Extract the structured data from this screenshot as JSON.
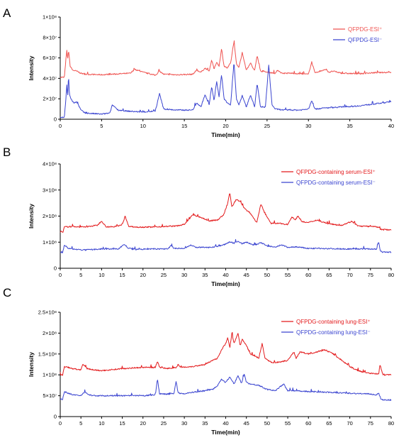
{
  "chart_data": [
    {
      "panel": "A",
      "type": "line",
      "xlabel": "Time(min)",
      "ylabel": "Intensity",
      "xlim": [
        0,
        40
      ],
      "ylim": [
        0,
        100000000
      ],
      "xticks": [
        0,
        5,
        10,
        15,
        20,
        25,
        30,
        35,
        40
      ],
      "yticks": [
        0,
        20000000,
        40000000,
        60000000,
        80000000,
        100000000
      ],
      "ytick_labels": [
        "0",
        "2×10⁷",
        "4×10⁷",
        "6×10⁷",
        "8×10⁷",
        "1×10⁸"
      ],
      "legend_position": "top-right",
      "series": [
        {
          "name": "QFPDG-ESI⁺",
          "color": "#ef5350",
          "base": 43000000,
          "x": [
            0.0,
            0.5,
            0.7,
            0.8,
            0.9,
            1.0,
            1.1,
            1.2,
            1.5,
            2.0,
            2.5,
            3.0,
            5.0,
            8.5,
            9.0,
            9.3,
            10.0,
            11.5,
            12.0,
            12.5,
            14.0,
            16.0,
            16.5,
            17.0,
            17.5,
            18.0,
            18.3,
            18.6,
            18.9,
            19.2,
            19.5,
            19.8,
            20.2,
            20.6,
            21.0,
            21.3,
            21.6,
            22.0,
            22.5,
            23.0,
            23.5,
            23.8,
            24.2,
            25.0,
            26.0,
            26.3,
            26.8,
            28.0,
            30.0,
            30.4,
            30.8,
            31.5,
            32.0,
            32.5,
            33.0,
            34.0,
            36.0,
            38.0,
            40.0
          ],
          "y": [
            41000000,
            41000000,
            60000000,
            67000000,
            58000000,
            68000000,
            60000000,
            52000000,
            48000000,
            47000000,
            45000000,
            44000000,
            43500000,
            45000000,
            49000000,
            48000000,
            46000000,
            43000000,
            47000000,
            44000000,
            43500000,
            44000000,
            48000000,
            46000000,
            50000000,
            47000000,
            58000000,
            49000000,
            56000000,
            52000000,
            69000000,
            52000000,
            50000000,
            55000000,
            76000000,
            54000000,
            51000000,
            65000000,
            48000000,
            55000000,
            47000000,
            63000000,
            47000000,
            46000000,
            45000000,
            48000000,
            45000000,
            45000000,
            44000000,
            56000000,
            45000000,
            47000000,
            49000000,
            46000000,
            47000000,
            45000000,
            44500000,
            45500000,
            46000000
          ]
        },
        {
          "name": "QFPDG-ESI⁻",
          "color": "#3b45d0",
          "base": 8000000,
          "x": [
            0.0,
            0.5,
            0.7,
            0.8,
            0.9,
            1.0,
            1.1,
            1.3,
            1.6,
            2.0,
            2.5,
            3.0,
            5.0,
            6.0,
            6.3,
            6.6,
            7.0,
            8.0,
            10.0,
            11.5,
            12.0,
            12.5,
            14.0,
            16.0,
            16.5,
            17.0,
            17.5,
            18.0,
            18.3,
            18.6,
            18.9,
            19.2,
            19.5,
            19.8,
            20.2,
            20.6,
            21.0,
            21.3,
            21.6,
            22.0,
            22.5,
            23.0,
            23.5,
            23.8,
            24.2,
            24.8,
            25.2,
            25.6,
            26.0,
            27.0,
            29.0,
            30.0,
            30.4,
            30.8,
            32.0,
            34.0,
            36.0,
            38.0,
            40.0
          ],
          "y": [
            2000000,
            2000000,
            22000000,
            34000000,
            20000000,
            44000000,
            25000000,
            20000000,
            16000000,
            17000000,
            9000000,
            6000000,
            5000000,
            6000000,
            14000000,
            12000000,
            9000000,
            8000000,
            7000000,
            8000000,
            25000000,
            10000000,
            9000000,
            9000000,
            16000000,
            12000000,
            24000000,
            14000000,
            32000000,
            18000000,
            37000000,
            22000000,
            44000000,
            20000000,
            16000000,
            14000000,
            56000000,
            20000000,
            14000000,
            23000000,
            12000000,
            24000000,
            12000000,
            35000000,
            12000000,
            12000000,
            53000000,
            14000000,
            10000000,
            9000000,
            9000000,
            10000000,
            18000000,
            10000000,
            11000000,
            12000000,
            13000000,
            15000000,
            17000000
          ]
        }
      ]
    },
    {
      "panel": "B",
      "type": "line",
      "xlabel": "Time(min)",
      "ylabel": "Intensity",
      "xlim": [
        0,
        80
      ],
      "ylim": [
        0,
        400000000
      ],
      "xticks": [
        0,
        5,
        10,
        15,
        20,
        25,
        30,
        35,
        40,
        45,
        50,
        55,
        60,
        65,
        70,
        75,
        80
      ],
      "yticks": [
        0,
        100000000,
        200000000,
        300000000,
        400000000
      ],
      "ytick_labels": [
        "0",
        "1×10⁸",
        "2×10⁸",
        "3×10⁸",
        "4×10⁸"
      ],
      "legend_position": "top-right",
      "series": [
        {
          "name": "QFPDG-containing serum-ESI⁺",
          "color": "#e31a1c",
          "base": 158000000,
          "x": [
            0,
            0.7,
            1.0,
            3,
            6,
            9,
            10,
            11,
            13,
            15,
            15.7,
            16.5,
            18,
            22,
            25,
            28,
            30,
            31,
            32,
            34,
            36,
            38,
            39.5,
            40.5,
            41,
            41.5,
            42.5,
            43.5,
            44.5,
            46,
            47.5,
            48.5,
            49.5,
            51,
            53,
            55,
            56,
            56.7,
            57.5,
            58.5,
            60,
            62,
            65,
            68,
            70.5,
            72,
            75,
            77,
            77.3,
            78,
            80
          ],
          "y": [
            140000000,
            140000000,
            158000000,
            160000000,
            158000000,
            165000000,
            182000000,
            160000000,
            158000000,
            168000000,
            200000000,
            162000000,
            158000000,
            158000000,
            160000000,
            162000000,
            168000000,
            185000000,
            205000000,
            195000000,
            182000000,
            185000000,
            205000000,
            250000000,
            290000000,
            235000000,
            262000000,
            258000000,
            230000000,
            210000000,
            175000000,
            245000000,
            210000000,
            172000000,
            172000000,
            168000000,
            198000000,
            185000000,
            200000000,
            178000000,
            175000000,
            185000000,
            170000000,
            165000000,
            180000000,
            162000000,
            160000000,
            158000000,
            150000000,
            148000000,
            148000000
          ]
        },
        {
          "name": "QFPDG-containing serum-ESI⁻",
          "color": "#3b45d0",
          "base": 72000000,
          "x": [
            0,
            0.6,
            1.0,
            2,
            4,
            6,
            10,
            14,
            15.5,
            16.5,
            18,
            22,
            26,
            26.8,
            27.5,
            30,
            31.5,
            33,
            36,
            38,
            40,
            41,
            42,
            43,
            44,
            45,
            47,
            48.5,
            50,
            52,
            53.5,
            55,
            57,
            60,
            63,
            66,
            70,
            74,
            76.5,
            77,
            77.4,
            78,
            80
          ],
          "y": [
            60000000,
            60000000,
            90000000,
            76000000,
            72000000,
            70000000,
            74000000,
            74000000,
            92000000,
            76000000,
            72000000,
            74000000,
            74000000,
            88000000,
            76000000,
            76000000,
            88000000,
            80000000,
            80000000,
            84000000,
            92000000,
            102000000,
            96000000,
            104000000,
            94000000,
            100000000,
            88000000,
            98000000,
            86000000,
            80000000,
            90000000,
            80000000,
            82000000,
            76000000,
            76000000,
            75000000,
            74000000,
            74000000,
            74000000,
            102000000,
            64000000,
            62000000,
            62000000
          ]
        }
      ]
    },
    {
      "panel": "C",
      "type": "line",
      "xlabel": "Time(min)",
      "ylabel": "Intensity",
      "xlim": [
        0,
        80
      ],
      "ylim": [
        0,
        250000000
      ],
      "xticks": [
        0,
        5,
        10,
        15,
        20,
        25,
        30,
        35,
        40,
        45,
        50,
        55,
        60,
        65,
        70,
        75,
        80
      ],
      "yticks": [
        0,
        50000000,
        100000000,
        150000000,
        200000000,
        250000000
      ],
      "ytick_labels": [
        "0",
        "5×10⁷",
        "1×10⁸",
        "1.5×10⁸",
        "2×10⁸",
        "2.5×10⁸"
      ],
      "legend_position": "top-right",
      "series": [
        {
          "name": "QFPDG-containing lung-ESI⁺",
          "color": "#e31a1c",
          "base": 112000000,
          "x": [
            0,
            0.6,
            1,
            3,
            5,
            5.5,
            6.5,
            8,
            10,
            15,
            20,
            23,
            23.5,
            24,
            26,
            28,
            28.5,
            29,
            32,
            35,
            37,
            38,
            39,
            40,
            40.5,
            41,
            41.5,
            42,
            43,
            43.5,
            44,
            45,
            46,
            48,
            48.8,
            49.5,
            51,
            53,
            55,
            56.5,
            57,
            58,
            60,
            62,
            64,
            66,
            68,
            70,
            72,
            74,
            76,
            77,
            77.3,
            78,
            80
          ],
          "y": [
            100000000,
            100000000,
            120000000,
            115000000,
            112000000,
            125000000,
            115000000,
            112000000,
            110000000,
            115000000,
            118000000,
            118000000,
            132000000,
            118000000,
            115000000,
            118000000,
            125000000,
            118000000,
            120000000,
            125000000,
            135000000,
            140000000,
            160000000,
            175000000,
            190000000,
            165000000,
            200000000,
            175000000,
            200000000,
            170000000,
            185000000,
            170000000,
            150000000,
            140000000,
            175000000,
            140000000,
            130000000,
            130000000,
            135000000,
            155000000,
            140000000,
            155000000,
            150000000,
            155000000,
            160000000,
            150000000,
            135000000,
            120000000,
            110000000,
            105000000,
            103000000,
            102000000,
            125000000,
            100000000,
            100000000
          ]
        },
        {
          "name": "QFPDG-containing lung-ESI⁻",
          "color": "#3b45d0",
          "base": 52000000,
          "x": [
            0,
            0.6,
            1,
            3,
            5,
            6,
            7,
            8,
            10,
            15,
            20,
            23,
            23.5,
            24,
            26,
            27.5,
            28,
            28.5,
            30,
            32,
            35,
            37,
            38,
            39,
            40,
            41,
            42,
            43,
            43.8,
            44.5,
            45,
            46,
            48,
            50,
            52,
            53,
            54,
            55,
            57,
            60,
            65,
            70,
            75,
            76.5,
            77,
            77.4,
            78,
            80
          ],
          "y": [
            42000000,
            42000000,
            60000000,
            52000000,
            50000000,
            60000000,
            52000000,
            50000000,
            50000000,
            50000000,
            50000000,
            52000000,
            90000000,
            55000000,
            54000000,
            56000000,
            85000000,
            56000000,
            55000000,
            58000000,
            62000000,
            66000000,
            74000000,
            90000000,
            82000000,
            95000000,
            78000000,
            98000000,
            80000000,
            103000000,
            82000000,
            78000000,
            75000000,
            65000000,
            62000000,
            70000000,
            78000000,
            62000000,
            62000000,
            60000000,
            58000000,
            56000000,
            54000000,
            52000000,
            58000000,
            42000000,
            40000000,
            40000000
          ]
        }
      ]
    }
  ]
}
